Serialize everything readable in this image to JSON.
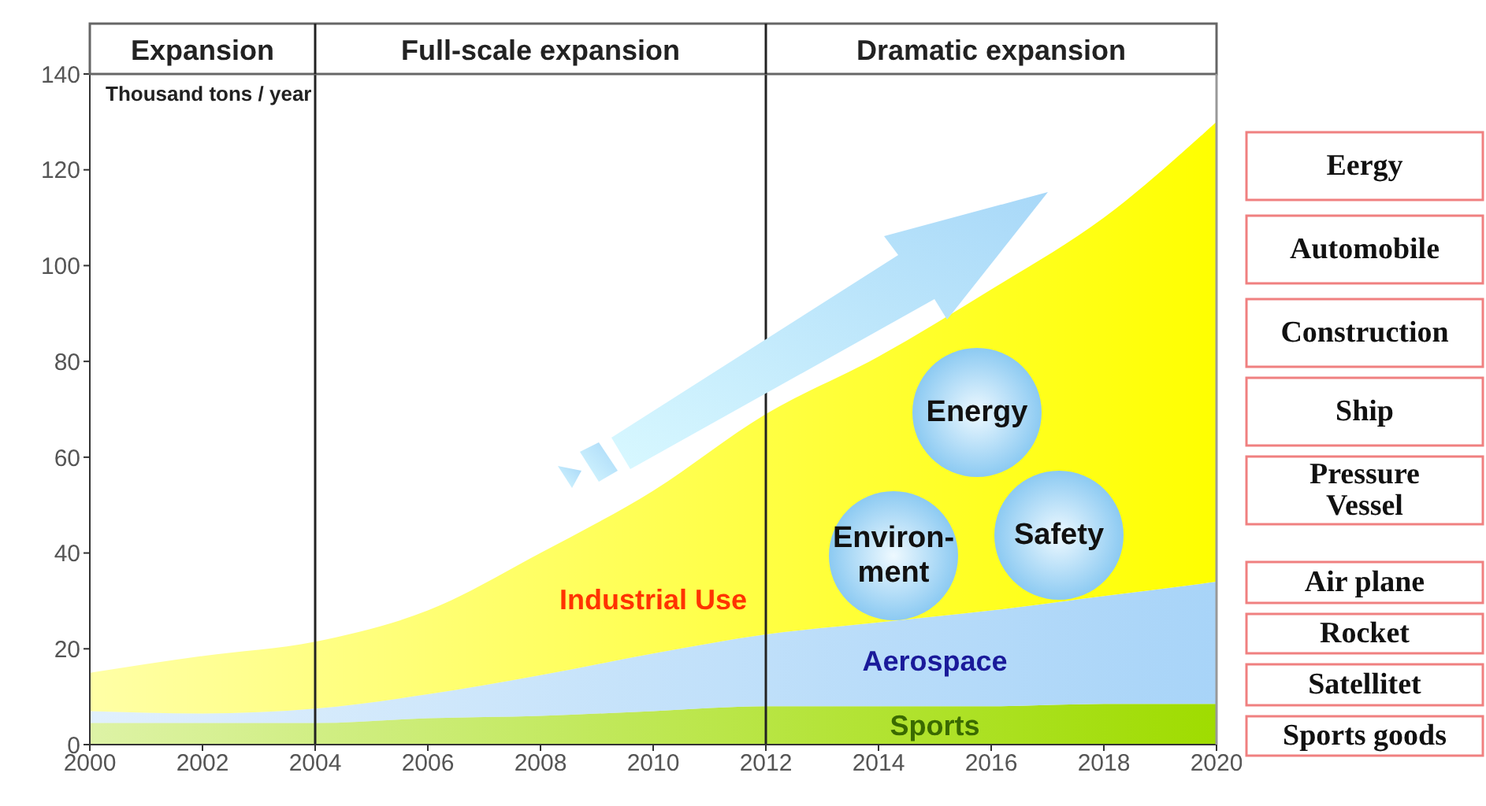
{
  "chart_data": {
    "type": "area",
    "stacked": true,
    "ylabel": "Thousand tons / year",
    "x": [
      2000,
      2002,
      2004,
      2006,
      2008,
      2010,
      2012,
      2014,
      2016,
      2018,
      2020
    ],
    "series": [
      {
        "name": "Sports",
        "color": "#9fdc00",
        "values": [
          4.5,
          4.5,
          4.5,
          5.5,
          6,
          7,
          8,
          8,
          8,
          8.5,
          8.5
        ]
      },
      {
        "name": "Aerospace",
        "color": "#a8d4f8",
        "values": [
          2.5,
          2,
          3,
          5,
          8.5,
          12,
          15,
          17.5,
          20,
          22.5,
          25.5
        ]
      },
      {
        "name": "Industrial Use",
        "color": "#ffff00",
        "values": [
          8,
          12,
          14,
          17.5,
          25.5,
          34,
          46,
          55.5,
          67,
          79,
          96
        ]
      }
    ],
    "xlim": [
      2000,
      2020
    ],
    "xticks": [
      2000,
      2002,
      2004,
      2006,
      2008,
      2010,
      2012,
      2014,
      2016,
      2018,
      2020
    ],
    "ylim": [
      0,
      140
    ],
    "yticks": [
      0,
      20,
      40,
      60,
      80,
      100,
      120,
      140
    ],
    "ref_lines": [
      {
        "axis": "x",
        "value": 2004
      },
      {
        "axis": "x",
        "value": 2012
      }
    ],
    "annotations": [
      "Expansion",
      "Full-scale expansion",
      "Dramatic expansion",
      "Energy",
      "Environ-\nment",
      "Safety",
      "Eergy",
      "Automobile",
      "Construction",
      "Ship",
      "Pressure\nVessel",
      "Air plane",
      "Rocket",
      "Satellitet",
      "Sports goods"
    ],
    "legend": false
  }
}
